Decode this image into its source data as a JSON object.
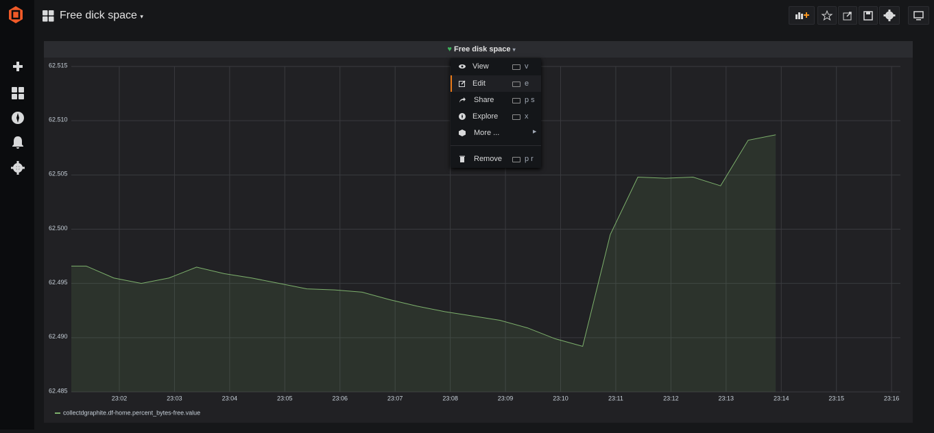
{
  "header": {
    "title": "Free dick space"
  },
  "panel": {
    "title": "Free disk space"
  },
  "menu": {
    "items": [
      {
        "label": "View",
        "shortcut": "v"
      },
      {
        "label": "Edit",
        "shortcut": "e"
      },
      {
        "label": "Share",
        "shortcut": "p s"
      },
      {
        "label": "Explore",
        "shortcut": "x"
      },
      {
        "label": "More ..."
      },
      {
        "label": "Remove",
        "shortcut": "p r"
      }
    ]
  },
  "chart_data": {
    "type": "line",
    "x": [
      1381.13,
      1381.4,
      1381.9,
      1382.4,
      1382.9,
      1383.4,
      1383.9,
      1384.4,
      1384.9,
      1385.4,
      1385.9,
      1386.4,
      1386.9,
      1387.4,
      1387.9,
      1388.4,
      1388.9,
      1389.4,
      1389.9,
      1390.4,
      1390.9,
      1391.4,
      1391.9,
      1392.4,
      1392.9,
      1393.4,
      1393.9
    ],
    "series": [
      {
        "name": "collectdgraphite.df-home.percent_bytes-free.value",
        "color": "#7eb26d",
        "values": [
          62.4966,
          62.4966,
          62.4955,
          62.495,
          62.4955,
          62.4965,
          62.4959,
          62.4955,
          62.495,
          62.4945,
          62.4944,
          62.4942,
          62.4935,
          62.4929,
          62.4924,
          62.492,
          62.4916,
          62.4909,
          62.4899,
          62.4892,
          62.4995,
          62.5048,
          62.5047,
          62.5048,
          62.504,
          62.5082,
          62.5087
        ]
      }
    ],
    "xlim": [
      1381.13,
      1396.16
    ],
    "xticks": [
      {
        "value": 1382,
        "label": "23:02"
      },
      {
        "value": 1383,
        "label": "23:03"
      },
      {
        "value": 1384,
        "label": "23:04"
      },
      {
        "value": 1385,
        "label": "23:05"
      },
      {
        "value": 1386,
        "label": "23:06"
      },
      {
        "value": 1387,
        "label": "23:07"
      },
      {
        "value": 1388,
        "label": "23:08"
      },
      {
        "value": 1389,
        "label": "23:09"
      },
      {
        "value": 1390,
        "label": "23:10"
      },
      {
        "value": 1391,
        "label": "23:11"
      },
      {
        "value": 1392,
        "label": "23:12"
      },
      {
        "value": 1393,
        "label": "23:13"
      },
      {
        "value": 1394,
        "label": "23:14"
      },
      {
        "value": 1395,
        "label": "23:15"
      },
      {
        "value": 1396,
        "label": "23:16"
      }
    ],
    "ylim": [
      62.485,
      62.515
    ],
    "yticks": [
      62.485,
      {
        "value": 62.49,
        "label": "62.490"
      },
      62.495,
      {
        "value": 62.5,
        "label": "62.500"
      },
      62.505,
      {
        "value": 62.51,
        "label": "62.510"
      },
      62.515
    ],
    "grid": true,
    "fill": true
  }
}
